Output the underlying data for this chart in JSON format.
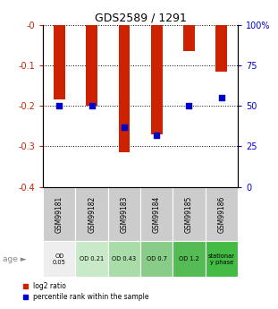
{
  "title": "GDS2589 / 1291",
  "samples": [
    "GSM99181",
    "GSM99182",
    "GSM99183",
    "GSM99184",
    "GSM99185",
    "GSM99186"
  ],
  "log2_ratios": [
    -0.185,
    -0.2,
    -0.315,
    -0.27,
    -0.065,
    -0.115
  ],
  "percentile_ranks": [
    50,
    50,
    37,
    32,
    50,
    55
  ],
  "bar_color": "#cc2200",
  "dot_color": "#0000cc",
  "ylim_left": [
    -0.4,
    0.0
  ],
  "ylim_right": [
    0,
    100
  ],
  "yticks_left": [
    0.0,
    -0.1,
    -0.2,
    -0.3,
    -0.4
  ],
  "yticks_right": [
    0,
    25,
    50,
    75,
    100
  ],
  "ytick_labels_left": [
    "-0",
    "-0.1",
    "-0.2",
    "-0.3",
    "-0.4"
  ],
  "ytick_labels_right": [
    "0",
    "25",
    "50",
    "75",
    "100%"
  ],
  "age_labels": [
    "OD\n0.05",
    "OD 0.21",
    "OD 0.43",
    "OD 0.7",
    "OD 1.2",
    "stationar\ny phase"
  ],
  "age_colors": [
    "#eeeeee",
    "#c8eac8",
    "#aadcaa",
    "#88cc88",
    "#55bb55",
    "#44bb44"
  ],
  "sample_bg_color": "#cccccc",
  "bar_width": 0.35,
  "grid_color": "black",
  "grid_linewidth": 0.7,
  "left_tick_color": "#cc2200",
  "right_tick_color": "#0000cc"
}
